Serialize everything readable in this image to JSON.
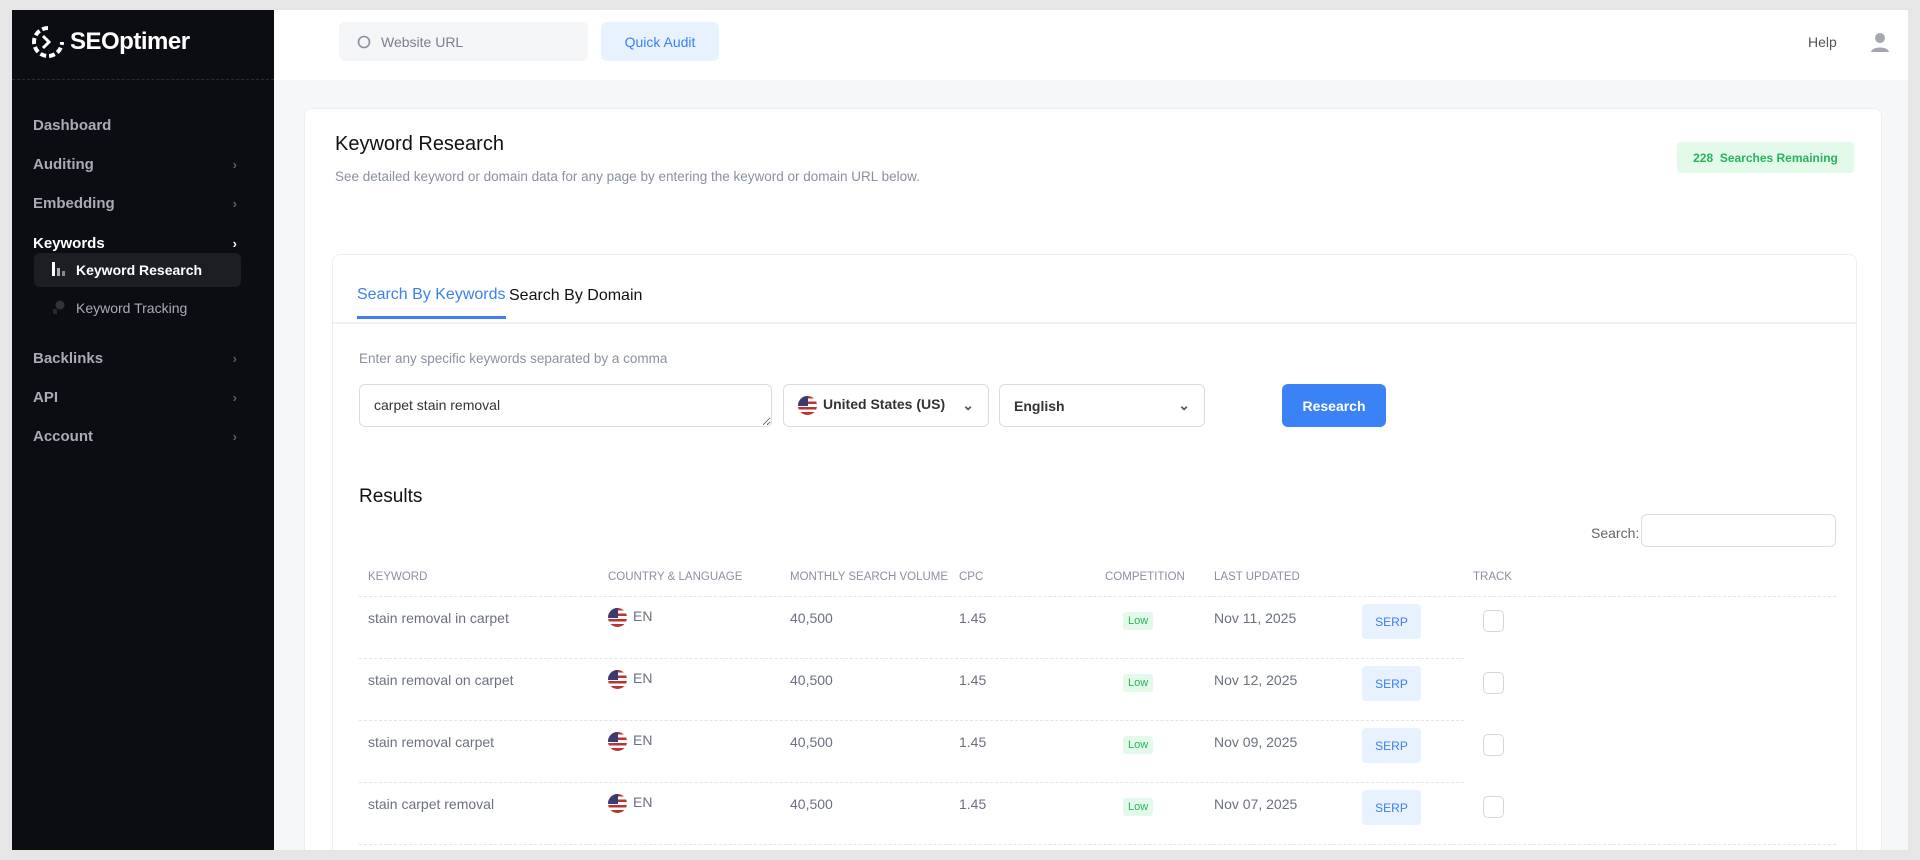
{
  "brand": {
    "name": "SEOptimer"
  },
  "header": {
    "url_placeholder": "Website URL",
    "quick_audit": "Quick Audit",
    "help": "Help"
  },
  "sidebar": {
    "items": [
      {
        "label": "Dashboard",
        "chevron": false
      },
      {
        "label": "Auditing",
        "chevron": true
      },
      {
        "label": "Embedding",
        "chevron": true
      },
      {
        "label": "Keywords",
        "chevron": true,
        "active": true
      },
      {
        "label": "Backlinks",
        "chevron": true
      },
      {
        "label": "API",
        "chevron": true
      },
      {
        "label": "Account",
        "chevron": true
      }
    ],
    "sub_items": [
      {
        "label": "Keyword Research",
        "active": true,
        "icon": "bar-chart-icon"
      },
      {
        "label": "Keyword Tracking",
        "icon": "tracking-icon"
      }
    ]
  },
  "page": {
    "title": "Keyword Research",
    "subtitle": "See detailed keyword or domain data for any page by entering the keyword or domain URL below.",
    "badge_count": "228",
    "badge_text": "Searches Remaining"
  },
  "tabs": [
    {
      "label": "Search By Keywords",
      "active": true
    },
    {
      "label": "Search By Domain"
    }
  ],
  "form": {
    "hint": "Enter any specific keywords separated by a comma",
    "keywords": "carpet stain removal",
    "country": "United States (US)",
    "language": "English",
    "submit": "Research"
  },
  "results": {
    "title": "Results",
    "search_label": "Search:",
    "columns": [
      "Keyword",
      "Country & Language",
      "Monthly Search Volume",
      "CPC",
      "Competition",
      "Last Updated",
      "",
      "Track"
    ],
    "rows": [
      {
        "keyword": "stain removal in carpet",
        "lang": "EN",
        "volume": "40,500",
        "cpc": "1.45",
        "competition": "Low",
        "updated": "Nov 11, 2025",
        "serp": "SERP"
      },
      {
        "keyword": "stain removal on carpet",
        "lang": "EN",
        "volume": "40,500",
        "cpc": "1.45",
        "competition": "Low",
        "updated": "Nov 12, 2025",
        "serp": "SERP"
      },
      {
        "keyword": "stain removal carpet",
        "lang": "EN",
        "volume": "40,500",
        "cpc": "1.45",
        "competition": "Low",
        "updated": "Nov 09, 2025",
        "serp": "SERP"
      },
      {
        "keyword": "stain carpet removal",
        "lang": "EN",
        "volume": "40,500",
        "cpc": "1.45",
        "competition": "Low",
        "updated": "Nov 07, 2025",
        "serp": "SERP"
      }
    ]
  },
  "colors": {
    "accent": "#3b82f6",
    "sidebar": "#0c0d12",
    "success": "#28b45a"
  }
}
